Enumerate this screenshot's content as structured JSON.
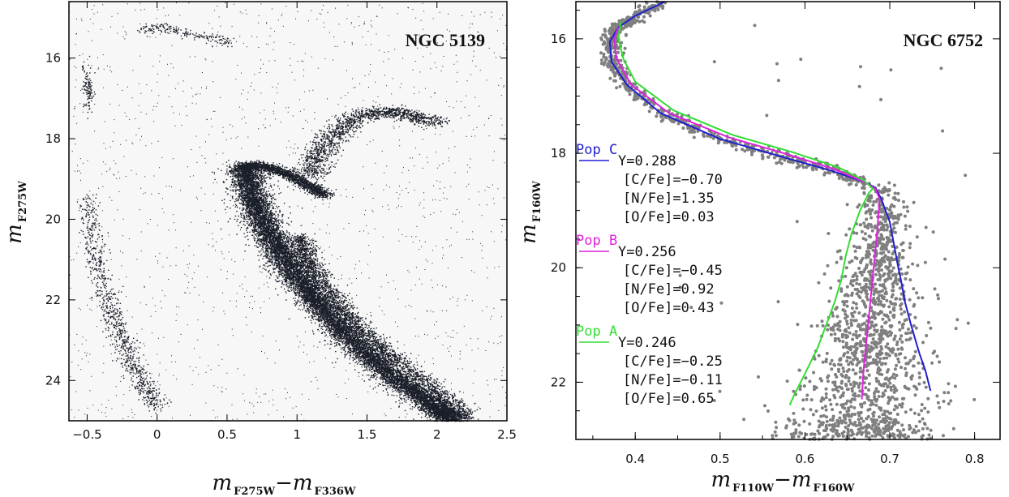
{
  "chart_data": [
    {
      "type": "scatter",
      "title": "NGC 5139",
      "xlabel_main": "m",
      "xlabel_sub1": "F275W",
      "xlabel_minus": "−",
      "xlabel_main2": "m",
      "xlabel_sub2": "F336W",
      "ylabel_main": "m",
      "ylabel_sub": "F275W",
      "xlim": [
        -0.63,
        2.5
      ],
      "ylim": [
        25.0,
        14.6
      ],
      "y_inverted": true,
      "xticks": [
        -0.5,
        0,
        0.5,
        1,
        1.5,
        2,
        2.5
      ],
      "xtick_labels": [
        "−0.5",
        "0",
        "0.5",
        "1",
        "1.5",
        "2",
        "2.5"
      ],
      "yticks": [
        16,
        18,
        20,
        22,
        24
      ],
      "ytick_labels": [
        "16",
        "18",
        "20",
        "22",
        "24"
      ],
      "point_color": "#1a1e28",
      "background": "#f7f7f7",
      "features": {
        "main_sequence_ridge": [
          [
            0.62,
            18.65
          ],
          [
            0.66,
            19.2
          ],
          [
            0.72,
            19.8
          ],
          [
            0.82,
            20.5
          ],
          [
            0.95,
            21.2
          ],
          [
            1.1,
            21.9
          ],
          [
            1.28,
            22.6
          ],
          [
            1.48,
            23.3
          ],
          [
            1.7,
            23.95
          ],
          [
            1.95,
            24.55
          ],
          [
            2.12,
            25.0
          ]
        ],
        "turnoff_subgiant": [
          [
            0.6,
            18.7
          ],
          [
            0.7,
            18.65
          ],
          [
            0.85,
            18.75
          ],
          [
            0.98,
            18.95
          ],
          [
            1.1,
            19.2
          ],
          [
            1.2,
            19.4
          ]
        ],
        "red_giant_branch": [
          [
            1.1,
            18.9
          ],
          [
            1.15,
            18.4
          ],
          [
            1.25,
            17.9
          ],
          [
            1.4,
            17.5
          ],
          [
            1.6,
            17.3
          ],
          [
            1.8,
            17.4
          ],
          [
            2.0,
            17.6
          ]
        ],
        "second_sequence": [
          [
            1.0,
            20.4
          ],
          [
            1.05,
            20.9
          ],
          [
            1.15,
            21.5
          ],
          [
            1.3,
            22.2
          ],
          [
            1.5,
            22.9
          ],
          [
            1.75,
            23.6
          ],
          [
            2.0,
            24.3
          ],
          [
            2.2,
            24.9
          ]
        ],
        "horizontal_branch": [
          [
            -0.1,
            15.35
          ],
          [
            0.0,
            15.2
          ],
          [
            0.1,
            15.3
          ],
          [
            0.25,
            15.4
          ],
          [
            0.4,
            15.5
          ],
          [
            0.5,
            15.6
          ]
        ],
        "blue_hook": [
          [
            -0.5,
            16.3
          ],
          [
            -0.5,
            16.6
          ],
          [
            -0.48,
            16.9
          ],
          [
            -0.5,
            17.2
          ]
        ],
        "white_dwarf_cooling": [
          [
            -0.5,
            19.5
          ],
          [
            -0.45,
            20.8
          ],
          [
            -0.38,
            21.8
          ],
          [
            -0.3,
            22.6
          ],
          [
            -0.2,
            23.4
          ],
          [
            -0.1,
            24.1
          ],
          [
            0.0,
            24.6
          ]
        ]
      }
    },
    {
      "type": "scatter",
      "title": "NGC 6752",
      "xlabel_main": "m",
      "xlabel_sub1": "F110W",
      "xlabel_minus": "−",
      "xlabel_main2": "m",
      "xlabel_sub2": "F160W",
      "ylabel_main": "m",
      "ylabel_sub": "F160W",
      "xlim": [
        0.33,
        0.83
      ],
      "ylim": [
        23.0,
        15.35
      ],
      "y_inverted": true,
      "xticks": [
        0.4,
        0.5,
        0.6,
        0.7,
        0.8
      ],
      "xtick_labels": [
        "0.4",
        "0.5",
        "0.6",
        "0.7",
        "0.8"
      ],
      "yticks": [
        16,
        18,
        20,
        22
      ],
      "ytick_labels": [
        "16",
        "18",
        "20",
        "22"
      ],
      "point_color": "#7f7f7f",
      "series": [
        {
          "name": "Pop C",
          "color": "#1f1fd0",
          "x": [
            0.435,
            0.4,
            0.38,
            0.37,
            0.372,
            0.39,
            0.43,
            0.5,
            0.57,
            0.63,
            0.67,
            0.683,
            0.69,
            0.7,
            0.705,
            0.71,
            0.713,
            0.718,
            0.725,
            0.735,
            0.742,
            0.748
          ],
          "y": [
            15.35,
            15.6,
            15.8,
            16.05,
            16.4,
            16.8,
            17.3,
            17.75,
            18.05,
            18.3,
            18.5,
            18.6,
            18.8,
            19.2,
            19.6,
            20.0,
            20.2,
            20.6,
            21.0,
            21.5,
            21.8,
            22.15
          ]
        },
        {
          "name": "Pop B",
          "color": "#dd22dd",
          "x": [
            0.38,
            0.375,
            0.378,
            0.395,
            0.44,
            0.51,
            0.58,
            0.635,
            0.67,
            0.683,
            0.688,
            0.685,
            0.681,
            0.677,
            0.673,
            0.669,
            0.667
          ],
          "y": [
            15.8,
            16.0,
            16.35,
            16.8,
            17.3,
            17.72,
            18.02,
            18.28,
            18.5,
            18.62,
            18.8,
            19.4,
            20.0,
            20.6,
            21.2,
            21.8,
            22.3
          ]
        },
        {
          "name": "Pop A",
          "color": "#33dd33",
          "x": [
            0.383,
            0.38,
            0.386,
            0.4,
            0.445,
            0.515,
            0.585,
            0.64,
            0.67,
            0.68,
            0.675,
            0.665,
            0.655,
            0.648,
            0.643,
            0.635,
            0.625,
            0.615,
            0.605,
            0.595,
            0.588,
            0.582
          ],
          "y": [
            15.7,
            16.0,
            16.35,
            16.75,
            17.25,
            17.68,
            17.98,
            18.25,
            18.48,
            18.62,
            18.7,
            19.0,
            19.4,
            19.8,
            20.2,
            20.6,
            21.0,
            21.4,
            21.7,
            22.0,
            22.2,
            22.4
          ]
        }
      ],
      "annotations": [
        {
          "label": "Pop C",
          "color": "#1f1fd0",
          "lines": [
            "Y=0.288",
            "[C/Fe]=−0.70",
            "[N/Fe]=1.35",
            "[O/Fe]=0.03"
          ]
        },
        {
          "label": "Pop B",
          "color": "#dd22dd",
          "lines": [
            "Y=0.256",
            "[C/Fe]=−0.45",
            "[N/Fe]=0.92",
            "[O/Fe]=0.43"
          ]
        },
        {
          "label": "Pop A",
          "color": "#33dd33",
          "lines": [
            "Y=0.246",
            "[C/Fe]=−0.25",
            "[N/Fe]=−0.11",
            "[O/Fe]=0.65"
          ]
        }
      ]
    }
  ]
}
